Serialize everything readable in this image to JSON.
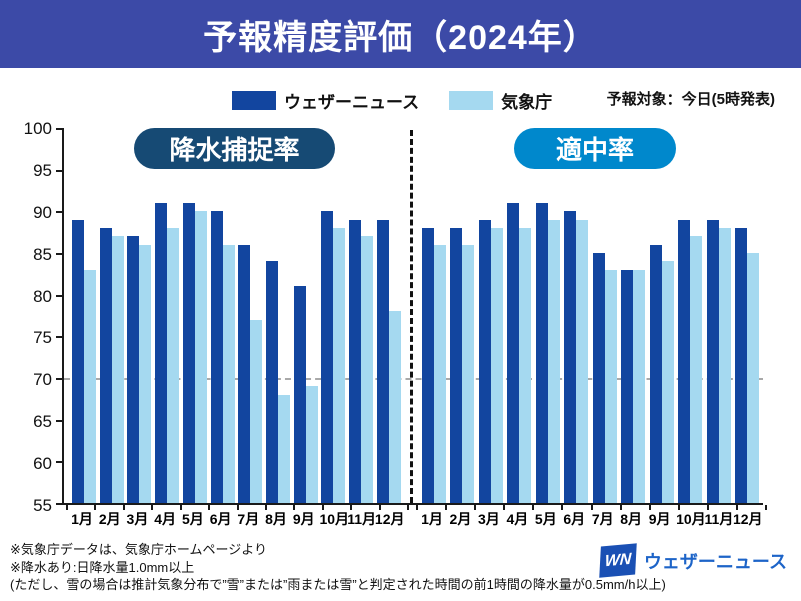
{
  "banner": {
    "title": "予報精度評価（2024年）",
    "bg_color": "#3c4aa7"
  },
  "legend": {
    "items": [
      {
        "label": "ウェザーニュース",
        "color": "#12459f"
      },
      {
        "label": "気象庁",
        "color": "#a5d9f0"
      }
    ]
  },
  "forecast_target": "予報対象：今日(5時発表)",
  "chart_data": {
    "type": "bar",
    "months": [
      "1月",
      "2月",
      "3月",
      "4月",
      "5月",
      "6月",
      "7月",
      "8月",
      "9月",
      "10月",
      "11月",
      "12月"
    ],
    "y_ticks": [
      100,
      95,
      90,
      85,
      80,
      75,
      70,
      65,
      60,
      55
    ],
    "ylim": [
      55,
      100
    ],
    "reference_line": 70,
    "grid": "off",
    "legend_position": "top-center",
    "panels": [
      {
        "label": "降水捕捉率",
        "pill_color": "#164a74",
        "series": [
          {
            "name": "ウェザーニュース",
            "color": "#12459f",
            "values": [
              89,
              88,
              87,
              91,
              91,
              90,
              86,
              84,
              81,
              90,
              89,
              89
            ]
          },
          {
            "name": "気象庁",
            "color": "#a5d9f0",
            "values": [
              83,
              87,
              86,
              88,
              90,
              86,
              77,
              68,
              69,
              88,
              87,
              78
            ]
          }
        ]
      },
      {
        "label": "適中率",
        "pill_color": "#0088cc",
        "series": [
          {
            "name": "ウェザーニュース",
            "color": "#12459f",
            "values": [
              88,
              88,
              89,
              91,
              91,
              90,
              85,
              83,
              86,
              89,
              89,
              88
            ]
          },
          {
            "name": "気象庁",
            "color": "#a5d9f0",
            "values": [
              86,
              86,
              88,
              88,
              89,
              89,
              83,
              83,
              84,
              87,
              88,
              85
            ]
          }
        ]
      }
    ]
  },
  "footnotes": [
    "※気象庁データは、気象庁ホームページより",
    "※降水あり:日降水量1.0mm以上",
    "(ただし、雪の場合は推計気象分布で”雪”または”雨または雪”と判定された時間の前1時間の降水量が0.5mm/h以上)"
  ],
  "logo": {
    "mark": "WN",
    "text": "ウェザーニュース"
  }
}
